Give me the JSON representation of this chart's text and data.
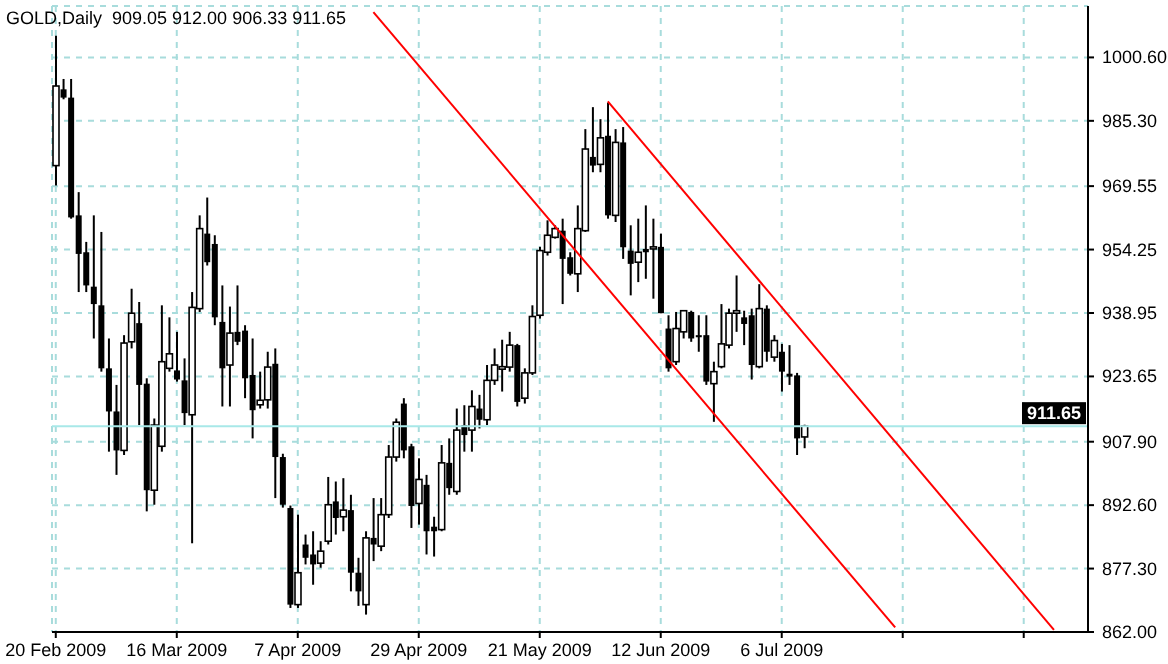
{
  "chart_data": {
    "type": "candlestick",
    "title": "GOLD,Daily  909.05 912.00 906.33 911.65",
    "categories": [
      "20 Feb 2009",
      null,
      null,
      null,
      null,
      null,
      null,
      null,
      null,
      null,
      null,
      null,
      null,
      null,
      null,
      null,
      "16 Mar 2009",
      null,
      null,
      null,
      null,
      null,
      null,
      null,
      null,
      null,
      null,
      null,
      null,
      null,
      null,
      null,
      "7 Apr 2009",
      null,
      null,
      null,
      null,
      null,
      null,
      null,
      null,
      null,
      null,
      null,
      null,
      null,
      null,
      null,
      "29 Apr 2009",
      null,
      null,
      null,
      null,
      null,
      null,
      null,
      null,
      null,
      null,
      null,
      null,
      null,
      null,
      null,
      "21 May 2009",
      null,
      null,
      null,
      null,
      null,
      null,
      null,
      null,
      null,
      null,
      null,
      null,
      null,
      null,
      null,
      "12 Jun 2009",
      null,
      null,
      null,
      null,
      null,
      null,
      null,
      null,
      null,
      null,
      null,
      null,
      null,
      null,
      null,
      "6 Jul 2009",
      null,
      null,
      null,
      null,
      null,
      null,
      null,
      null,
      null,
      null,
      null,
      null,
      null,
      null,
      null,
      null,
      null,
      null,
      null,
      null,
      null,
      null,
      null,
      null,
      null,
      null,
      null,
      null,
      null,
      null,
      null,
      null,
      null,
      null,
      null,
      null,
      null,
      null,
      null,
      null
    ],
    "ohlc": [
      [
        974.5,
        1005.8,
        969.7,
        993.7
      ],
      [
        992.9,
        995.4,
        990.5,
        990.9
      ],
      [
        990.9,
        995.4,
        961.7,
        962.0
      ],
      [
        962.5,
        968.1,
        944.0,
        953.2
      ],
      [
        953.6,
        956.1,
        944.0,
        945.6
      ],
      [
        945.3,
        962.5,
        932.8,
        941.1
      ],
      [
        940.8,
        958.5,
        924.8,
        925.6
      ],
      [
        925.6,
        932.8,
        905.5,
        915.2
      ],
      [
        915.2,
        921.6,
        899.9,
        905.8
      ],
      [
        905.8,
        933.6,
        904.7,
        931.7
      ],
      [
        932.0,
        944.8,
        930.4,
        938.9
      ],
      [
        936.5,
        941.6,
        911.9,
        921.6
      ],
      [
        921.9,
        923.2,
        891.1,
        896.2
      ],
      [
        896.2,
        913.5,
        892.7,
        911.9
      ],
      [
        906.8,
        940.8,
        905.5,
        927.2
      ],
      [
        925.6,
        937.9,
        924.8,
        929.1
      ],
      [
        925.1,
        934.4,
        922.4,
        922.9
      ],
      [
        922.7,
        928.0,
        911.9,
        914.8
      ],
      [
        914.4,
        944.0,
        883.4,
        940.3
      ],
      [
        940.0,
        962.5,
        939.2,
        959.3
      ],
      [
        958.1,
        966.8,
        950.4,
        951.2
      ],
      [
        955.6,
        957.7,
        936.0,
        937.9
      ],
      [
        936.8,
        945.6,
        916.4,
        925.6
      ],
      [
        926.4,
        940.5,
        916.4,
        934.1
      ],
      [
        934.4,
        945.6,
        931.2,
        932.0
      ],
      [
        934.7,
        936.0,
        918.4,
        923.2
      ],
      [
        924.0,
        932.8,
        908.7,
        915.5
      ],
      [
        916.8,
        924.8,
        915.9,
        917.9
      ],
      [
        918.0,
        929.6,
        915.9,
        925.9
      ],
      [
        926.7,
        930.4,
        894.3,
        904.2
      ],
      [
        904.2,
        905.0,
        892.0,
        892.7
      ],
      [
        891.9,
        892.5,
        867.8,
        868.6
      ],
      [
        868.6,
        890.3,
        867.8,
        876.3
      ],
      [
        883.1,
        885.5,
        878.3,
        879.9
      ],
      [
        880.7,
        886.3,
        873.4,
        878.3
      ],
      [
        878.6,
        883.9,
        877.5,
        881.5
      ],
      [
        883.9,
        899.4,
        883.1,
        892.7
      ],
      [
        893.5,
        898.3,
        885.5,
        889.5
      ],
      [
        889.8,
        899.1,
        886.3,
        891.4
      ],
      [
        891.4,
        895.1,
        871.8,
        876.3
      ],
      [
        876.3,
        879.9,
        868.3,
        871.8
      ],
      [
        868.6,
        886.3,
        866.2,
        884.7
      ],
      [
        884.7,
        894.3,
        879.1,
        883.1
      ],
      [
        882.7,
        894.3,
        881.5,
        890.3
      ],
      [
        890.3,
        907.1,
        889.5,
        904.2
      ],
      [
        904.2,
        913.5,
        903.1,
        912.6
      ],
      [
        917.1,
        918.4,
        903.9,
        905.8
      ],
      [
        906.8,
        907.4,
        887.1,
        892.4
      ],
      [
        893.0,
        903.9,
        887.9,
        898.8
      ],
      [
        897.5,
        899.9,
        880.7,
        886.3
      ],
      [
        887.4,
        889.8,
        880.2,
        886.3
      ],
      [
        886.7,
        907.1,
        886.3,
        902.8
      ],
      [
        902.8,
        908.7,
        895.1,
        896.7
      ],
      [
        895.9,
        915.9,
        895.1,
        910.7
      ],
      [
        911.9,
        916.7,
        905.5,
        909.5
      ],
      [
        910.7,
        920.3,
        905.5,
        916.4
      ],
      [
        915.9,
        919.2,
        911.1,
        913.2
      ],
      [
        913.2,
        926.4,
        911.9,
        922.7
      ],
      [
        922.7,
        930.4,
        921.6,
        926.4
      ],
      [
        925.4,
        932.5,
        920.0,
        926.0
      ],
      [
        925.9,
        934.4,
        924.8,
        931.2
      ],
      [
        931.2,
        931.5,
        916.4,
        917.5
      ],
      [
        918.4,
        925.6,
        917.1,
        924.5
      ],
      [
        924.5,
        940.8,
        924.0,
        938.1
      ],
      [
        938.4,
        954.9,
        937.6,
        954.0
      ],
      [
        953.6,
        961.3,
        952.8,
        957.7
      ],
      [
        957.2,
        960.1,
        956.9,
        959.3
      ],
      [
        958.8,
        961.7,
        941.1,
        952.0
      ],
      [
        952.4,
        953.6,
        948.0,
        948.4
      ],
      [
        948.4,
        964.9,
        944.0,
        959.3
      ],
      [
        958.8,
        983.3,
        958.5,
        978.5
      ],
      [
        976.6,
        988.6,
        972.9,
        974.5
      ],
      [
        974.8,
        985.7,
        972.9,
        981.2
      ],
      [
        981.7,
        989.7,
        961.7,
        962.5
      ],
      [
        962.5,
        983.3,
        960.9,
        980.1
      ],
      [
        980.1,
        983.8,
        952.0,
        954.8
      ],
      [
        954.0,
        960.1,
        943.2,
        950.8
      ],
      [
        951.2,
        961.7,
        946.4,
        953.6
      ],
      [
        954.4,
        964.9,
        947.2,
        953.6
      ],
      [
        954.4,
        961.7,
        942.4,
        954.9
      ],
      [
        954.9,
        958.1,
        938.9,
        938.9
      ],
      [
        935.2,
        938.4,
        924.8,
        925.6
      ],
      [
        927.2,
        939.2,
        926.4,
        935.2
      ],
      [
        934.4,
        939.5,
        932.8,
        939.5
      ],
      [
        939.2,
        939.5,
        932.0,
        932.8
      ],
      [
        933.6,
        938.4,
        929.6,
        933.1
      ],
      [
        933.6,
        938.4,
        921.6,
        922.4
      ],
      [
        921.9,
        927.2,
        912.7,
        924.8
      ],
      [
        926.0,
        941.1,
        925.6,
        931.5
      ],
      [
        931.2,
        940.0,
        930.4,
        938.9
      ],
      [
        938.9,
        948.0,
        934.4,
        939.5
      ],
      [
        937.9,
        939.5,
        931.2,
        936.3
      ],
      [
        938.4,
        940.0,
        922.9,
        926.4
      ],
      [
        926.0,
        945.9,
        925.6,
        940.0
      ],
      [
        940.0,
        940.8,
        927.2,
        929.6
      ],
      [
        928.3,
        933.6,
        927.2,
        932.3
      ],
      [
        929.6,
        931.5,
        920.0,
        924.8
      ],
      [
        924.3,
        931.2,
        921.6,
        923.6
      ],
      [
        923.9,
        924.5,
        904.7,
        908.7
      ],
      [
        909.05,
        912.0,
        906.33,
        911.65
      ],
      null,
      null,
      null,
      null,
      null,
      null,
      null,
      null,
      null,
      null,
      null,
      null,
      null,
      null,
      null,
      null,
      null,
      null,
      null,
      null,
      null,
      null,
      null,
      null,
      null,
      null,
      null,
      null,
      null,
      null,
      null,
      null,
      null,
      null,
      null,
      null,
      null
    ],
    "series": [
      {
        "type": "line",
        "color": "#ff0000",
        "values": [
          null,
          null,
          null,
          null,
          null,
          null,
          null,
          null,
          null,
          null,
          null,
          null,
          null,
          null,
          null,
          null,
          null,
          null,
          null,
          null,
          null,
          null,
          null,
          null,
          null,
          null,
          null,
          null,
          null,
          null,
          null,
          null,
          null,
          null,
          null,
          null,
          null,
          null,
          null,
          null,
          null,
          null,
          1011.5,
          null,
          null,
          null,
          null,
          null,
          null,
          null,
          null,
          null,
          null,
          null,
          null,
          null,
          null,
          null,
          null,
          null,
          null,
          null,
          null,
          null,
          null,
          null,
          null,
          null,
          null,
          null,
          null,
          null,
          null,
          null,
          null,
          null,
          null,
          null,
          null,
          null,
          null,
          null,
          null,
          null,
          null,
          null,
          null,
          null,
          null,
          null,
          null,
          null,
          null,
          null,
          null,
          null,
          null,
          null,
          null,
          null,
          null,
          null,
          null,
          null,
          null,
          null,
          null,
          null,
          null,
          null,
          null,
          863.1,
          null,
          null,
          null,
          null,
          null,
          null,
          null,
          null,
          null,
          null,
          null,
          null,
          null,
          null,
          null,
          null,
          null,
          null,
          null,
          null,
          null,
          null,
          null,
          null,
          null
        ]
      },
      {
        "type": "line",
        "color": "#ff0000",
        "values": [
          null,
          null,
          null,
          null,
          null,
          null,
          null,
          null,
          null,
          null,
          null,
          null,
          null,
          null,
          null,
          null,
          null,
          null,
          null,
          null,
          null,
          null,
          null,
          null,
          null,
          null,
          null,
          null,
          null,
          null,
          null,
          null,
          null,
          null,
          null,
          null,
          null,
          null,
          null,
          null,
          null,
          null,
          null,
          null,
          null,
          null,
          null,
          null,
          null,
          null,
          null,
          null,
          null,
          null,
          null,
          null,
          null,
          null,
          null,
          null,
          null,
          null,
          null,
          null,
          null,
          null,
          null,
          null,
          null,
          null,
          null,
          null,
          null,
          990.0,
          null,
          null,
          null,
          null,
          null,
          null,
          null,
          null,
          null,
          null,
          null,
          null,
          null,
          null,
          null,
          null,
          null,
          null,
          null,
          null,
          null,
          null,
          null,
          null,
          null,
          null,
          null,
          null,
          null,
          null,
          null,
          null,
          null,
          null,
          null,
          null,
          null,
          null,
          null,
          null,
          null,
          null,
          null,
          null,
          null,
          null,
          null,
          null,
          null,
          null,
          null,
          null,
          null,
          null,
          null,
          null,
          null,
          null,
          862.5,
          null,
          null,
          null,
          null
        ]
      }
    ],
    "ylim": [
      862,
      1013
    ],
    "yticks": [
      {
        "value": 862,
        "label": "862.00"
      },
      {
        "value": 877.3,
        "label": "877.30"
      },
      {
        "value": 892.6,
        "label": "892.60"
      },
      {
        "value": 907.9,
        "label": "907.90"
      },
      {
        "value": 923.65,
        "label": "923.65"
      },
      {
        "value": 938.95,
        "label": "938.95"
      },
      {
        "value": 954.25,
        "label": "954.25"
      },
      {
        "value": 969.55,
        "label": "969.55"
      },
      {
        "value": 985.3,
        "label": "985.30"
      },
      {
        "value": 1000.6,
        "label": "1000.60"
      }
    ],
    "grid": true,
    "ref_lines": [
      {
        "axis": "y",
        "value": 911.65,
        "label": "911.65",
        "color": "#a8e8e8"
      }
    ]
  }
}
